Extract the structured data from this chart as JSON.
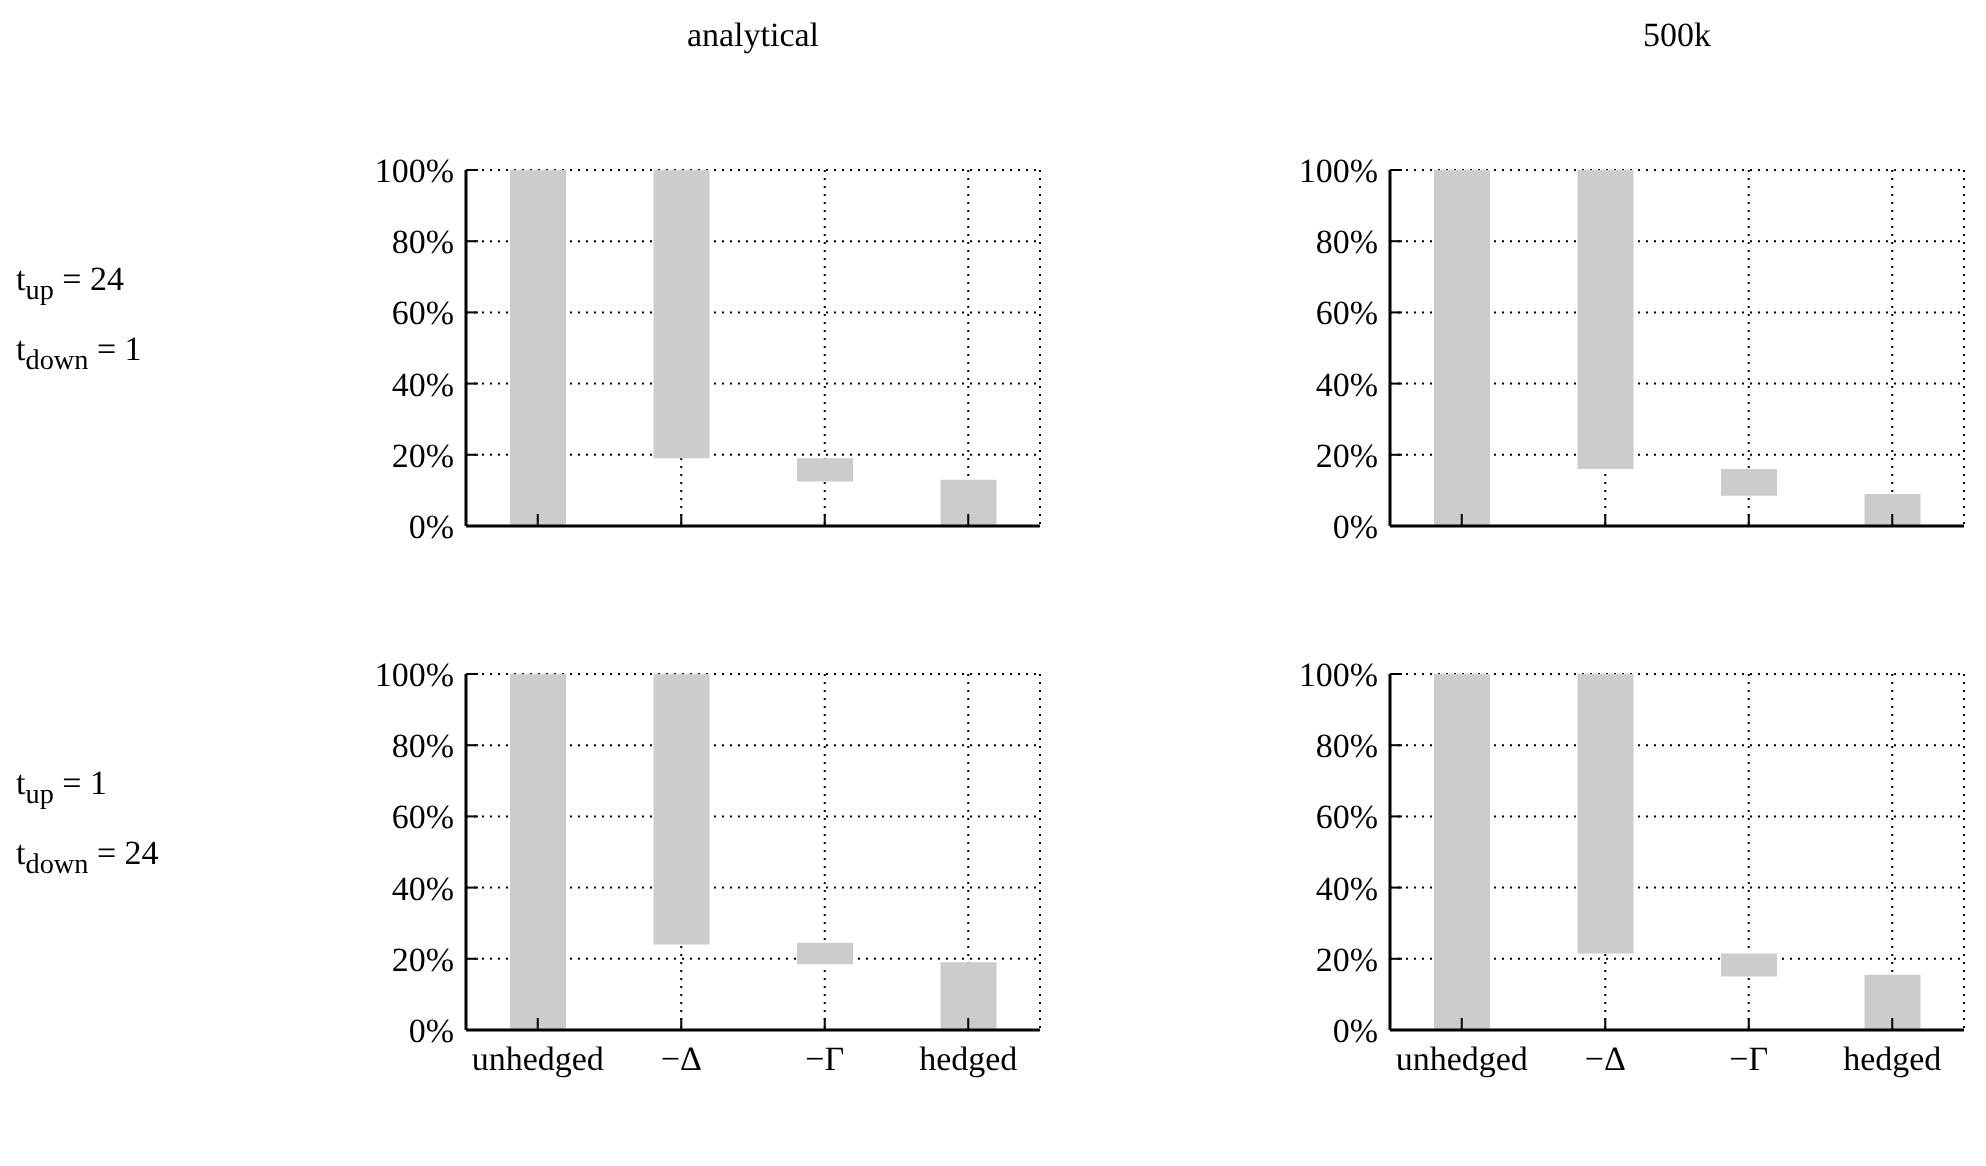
{
  "chart_data": [
    {
      "type": "bar",
      "title": "analytical",
      "categories": [
        null,
        null,
        null,
        null
      ],
      "values": [
        100,
        81,
        6.5,
        13
      ],
      "base": [
        0,
        19,
        12.5,
        0
      ],
      "color": "#cccccc",
      "ylim": [
        0,
        100
      ],
      "yticks": [
        {
          "value": 0,
          "label": "0%"
        },
        {
          "value": 20,
          "label": "20%"
        },
        {
          "value": 40,
          "label": "40%"
        },
        {
          "value": 60,
          "label": "60%"
        },
        {
          "value": 80,
          "label": "80%"
        },
        {
          "value": 100,
          "label": "100%"
        }
      ],
      "grid": true,
      "tick_labels": "y",
      "annotations": [
        "t$_{up}$ = 24",
        "t$_{down}$ = 1"
      ]
    },
    {
      "type": "bar",
      "title": "500k",
      "categories": [
        null,
        null,
        null,
        null
      ],
      "values": [
        100,
        84,
        7.5,
        9
      ],
      "base": [
        0,
        16,
        8.5,
        0
      ],
      "color": "#cccccc",
      "ylim": [
        0,
        100
      ],
      "yticks": [
        {
          "value": 0,
          "label": "0%"
        },
        {
          "value": 20,
          "label": "20%"
        },
        {
          "value": 40,
          "label": "40%"
        },
        {
          "value": 60,
          "label": "60%"
        },
        {
          "value": 80,
          "label": "80%"
        },
        {
          "value": 100,
          "label": "100%"
        }
      ],
      "grid": true,
      "tick_labels": "y"
    },
    {
      "type": "bar",
      "categories": [
        "unhedged",
        "−Δ",
        "−Γ",
        "hedged"
      ],
      "values": [
        100,
        76,
        6,
        19
      ],
      "base": [
        0,
        24,
        18.5,
        0
      ],
      "color": "#cccccc",
      "ylim": [
        0,
        100
      ],
      "yticks": [
        {
          "value": 0,
          "label": "0%"
        },
        {
          "value": 20,
          "label": "20%"
        },
        {
          "value": 40,
          "label": "40%"
        },
        {
          "value": 60,
          "label": "60%"
        },
        {
          "value": 80,
          "label": "80%"
        },
        {
          "value": 100,
          "label": "100%"
        }
      ],
      "grid": true,
      "annotations": [
        "t$_{up}$ = 1",
        "t$_{down}$ = 24"
      ]
    },
    {
      "type": "bar",
      "categories": [
        "unhedged",
        "−Δ",
        "−Γ",
        "hedged"
      ],
      "values": [
        100,
        78.5,
        6.5,
        15.5
      ],
      "base": [
        0,
        21.5,
        15,
        0
      ],
      "color": "#cccccc",
      "ylim": [
        0,
        100
      ],
      "yticks": [
        {
          "value": 0,
          "label": "0%"
        },
        {
          "value": 20,
          "label": "20%"
        },
        {
          "value": 40,
          "label": "40%"
        },
        {
          "value": 60,
          "label": "60%"
        },
        {
          "value": 80,
          "label": "80%"
        },
        {
          "value": 100,
          "label": "100%"
        }
      ],
      "grid": true
    }
  ]
}
